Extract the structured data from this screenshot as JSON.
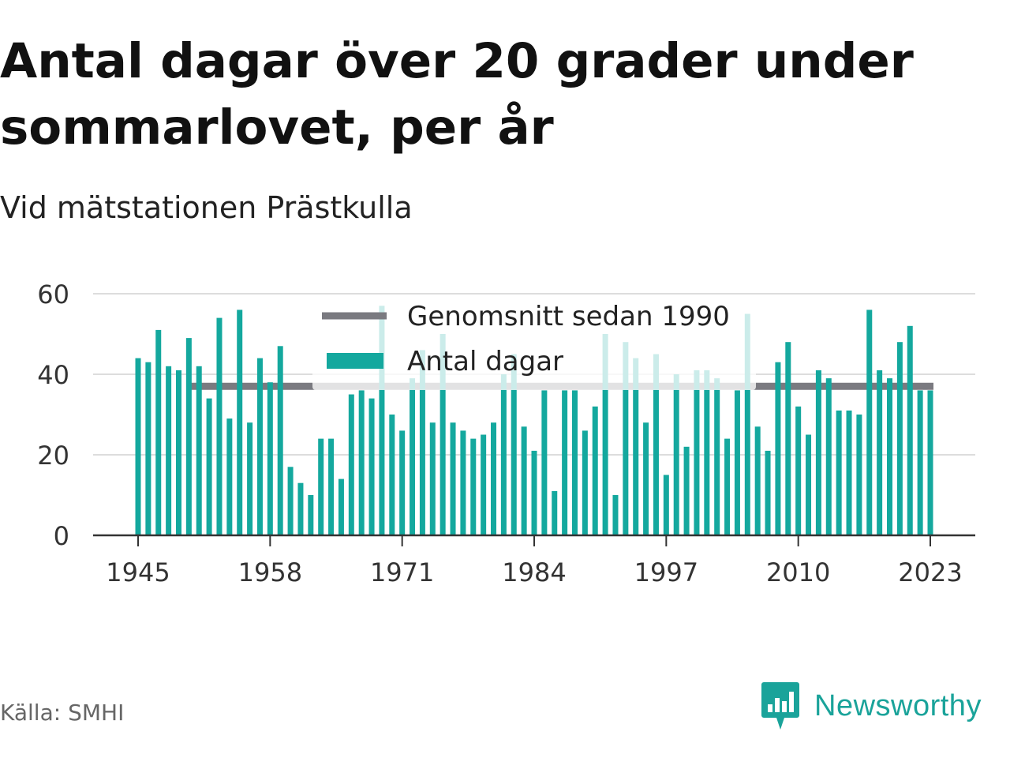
{
  "header": {
    "title": "Antal dagar över 20 grader under sommarlovet, per år",
    "subtitle": "Vid mätstationen Prästkulla"
  },
  "footer": {
    "source": "Källa: SMHI",
    "brand": "Newsworthy"
  },
  "colors": {
    "bars": "#14a89e",
    "average": "#7a7a80",
    "grid": "#dddddd",
    "brand": "#1aa39a"
  },
  "chart_data": {
    "type": "bar",
    "title": "Antal dagar över 20 grader under sommarlovet, per år",
    "subtitle": "Vid mätstationen Prästkulla",
    "xlabel": "",
    "ylabel": "",
    "ylim": [
      0,
      60
    ],
    "yticks": [
      0,
      20,
      40,
      60
    ],
    "xticks": [
      1945,
      1958,
      1971,
      1984,
      1997,
      2010,
      2023
    ],
    "grid": true,
    "legend": "top-center",
    "legend_labels": [
      "Genomsnitt sedan 1990",
      "Antal dagar"
    ],
    "categories": [
      1945,
      1946,
      1947,
      1948,
      1949,
      1950,
      1951,
      1952,
      1953,
      1954,
      1955,
      1956,
      1957,
      1958,
      1959,
      1960,
      1961,
      1962,
      1963,
      1964,
      1965,
      1966,
      1967,
      1968,
      1969,
      1970,
      1971,
      1972,
      1973,
      1974,
      1975,
      1976,
      1977,
      1978,
      1979,
      1980,
      1981,
      1982,
      1983,
      1984,
      1985,
      1986,
      1987,
      1988,
      1989,
      1990,
      1991,
      1992,
      1993,
      1994,
      1995,
      1996,
      1997,
      1998,
      1999,
      2000,
      2001,
      2002,
      2003,
      2004,
      2005,
      2006,
      2007,
      2008,
      2009,
      2010,
      2011,
      2012,
      2013,
      2014,
      2015,
      2016,
      2017,
      2018,
      2019,
      2020,
      2021,
      2022,
      2023
    ],
    "series": [
      {
        "name": "Antal dagar",
        "values": [
          44,
          43,
          51,
          42,
          41,
          49,
          42,
          34,
          54,
          29,
          56,
          28,
          44,
          38,
          47,
          17,
          13,
          10,
          24,
          24,
          14,
          35,
          36,
          34,
          57,
          30,
          26,
          39,
          46,
          28,
          50,
          28,
          26,
          24,
          25,
          28,
          40,
          45,
          27,
          21,
          36,
          11,
          36,
          36,
          26,
          32,
          50,
          10,
          48,
          44,
          28,
          45,
          15,
          40,
          22,
          41,
          41,
          39,
          24,
          36,
          55,
          27,
          21,
          43,
          48,
          32,
          25,
          41,
          39,
          31,
          31,
          30,
          56,
          41,
          39,
          48,
          52,
          36,
          36
        ]
      },
      {
        "name": "Genomsnitt sedan 1990",
        "type": "line",
        "x_range": [
          1951,
          2023
        ],
        "value": 37
      }
    ]
  }
}
